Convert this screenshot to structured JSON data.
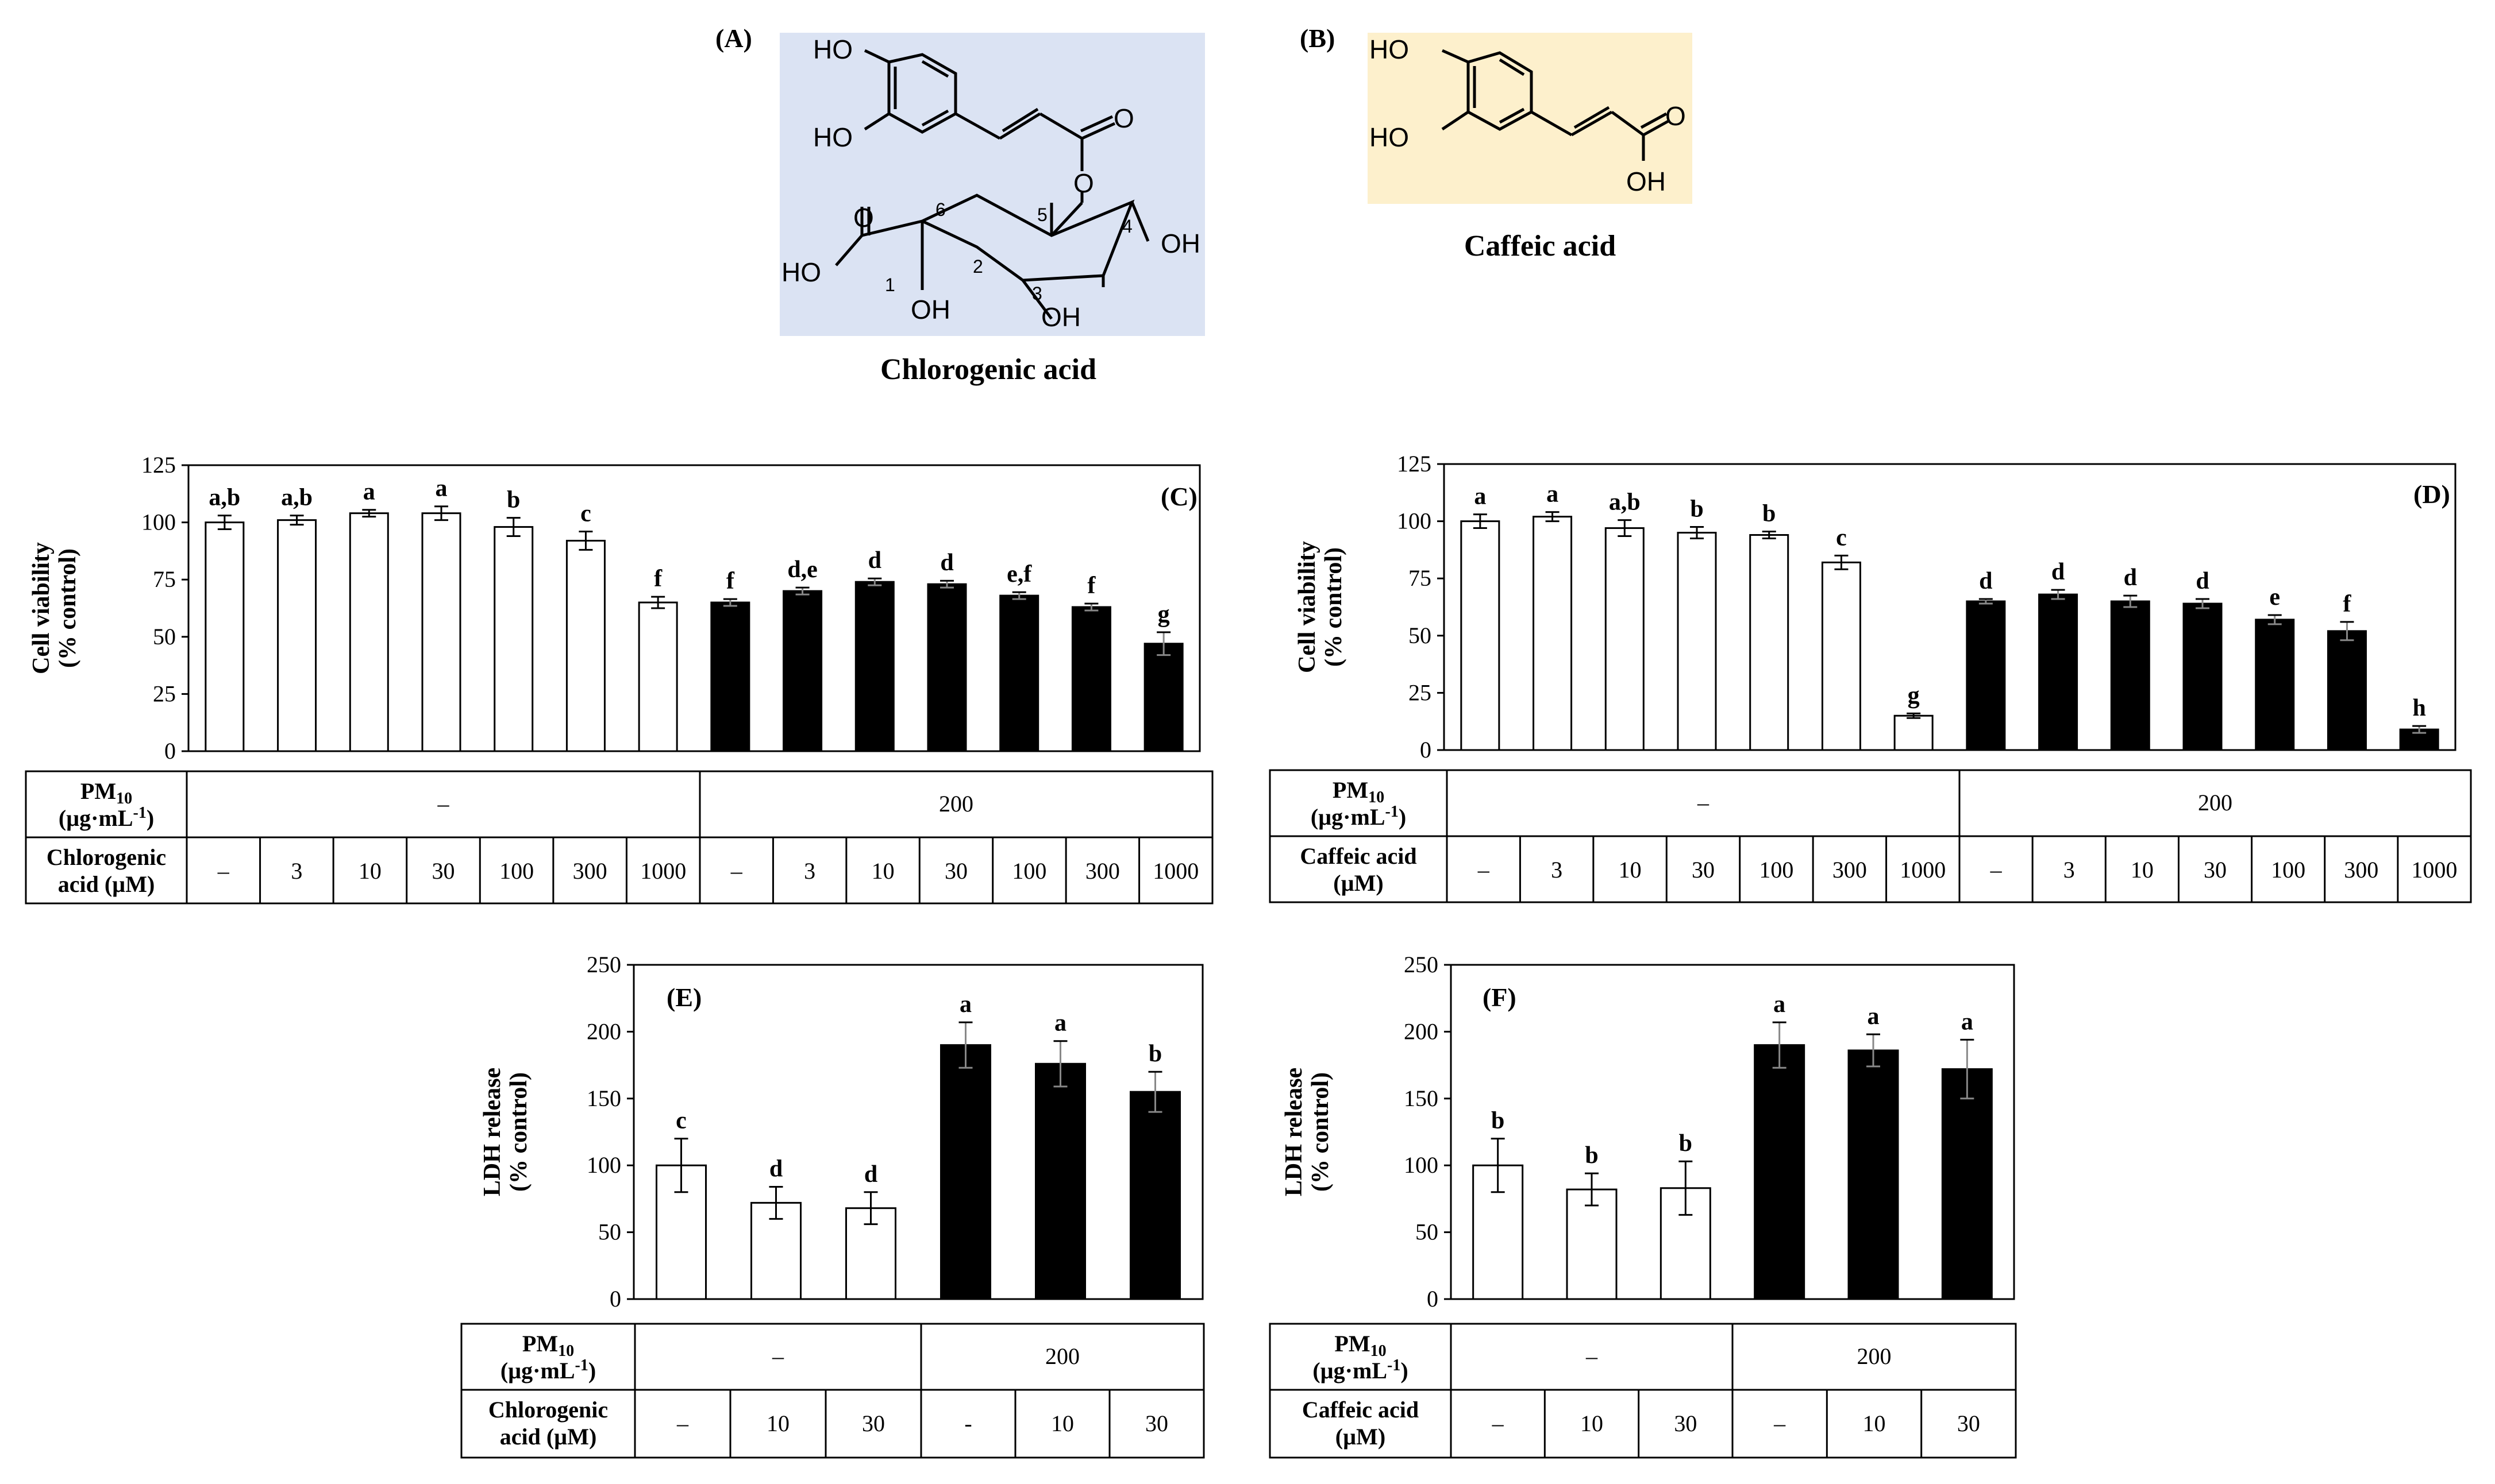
{
  "structures": {
    "A": {
      "panel_label": "(A)",
      "name": "Chlorogenic acid",
      "background": "#dbe3f3",
      "atoms": [
        "HO",
        "HO",
        "O",
        "O",
        "O",
        "HO",
        "OH",
        "OH",
        "OH"
      ],
      "numbers": [
        "1",
        "2",
        "3",
        "4",
        "5",
        "6"
      ]
    },
    "B": {
      "panel_label": "(B)",
      "name": "Caffeic acid",
      "background": "#fdf0cc",
      "atoms": [
        "HO",
        "HO",
        "O",
        "OH"
      ]
    }
  },
  "chart_data": [
    {
      "panel": "(C)",
      "type": "bar",
      "ylabel": [
        "Cell viability",
        "(% control)"
      ],
      "ylim": [
        0,
        125
      ],
      "yticks": [
        0,
        25,
        50,
        75,
        100,
        125
      ],
      "values": [
        100,
        101,
        104,
        104,
        98,
        92,
        65,
        65,
        70,
        74,
        73,
        68,
        63,
        47
      ],
      "errors": [
        3,
        2,
        1.5,
        3,
        4,
        4,
        2.5,
        1.5,
        1.5,
        1.5,
        1.5,
        1.5,
        1.5,
        5
      ],
      "fills": [
        "open",
        "open",
        "open",
        "open",
        "open",
        "open",
        "open",
        "solid",
        "solid",
        "solid",
        "solid",
        "solid",
        "solid",
        "solid"
      ],
      "letters": [
        "a,b",
        "a,b",
        "a",
        "a",
        "b",
        "c",
        "f",
        "f",
        "d,e",
        "d",
        "d",
        "e,f",
        "f",
        "g"
      ],
      "table": {
        "row1_label": [
          "PM10",
          "(µg·mL-1)"
        ],
        "row1_groups": [
          "–",
          "200"
        ],
        "row2_label": [
          "Chlorogenic",
          "acid (µM)"
        ],
        "row2_values": [
          "–",
          "3",
          "10",
          "30",
          "100",
          "300",
          "1000",
          "–",
          "3",
          "10",
          "30",
          "100",
          "300",
          "1000"
        ]
      }
    },
    {
      "panel": "(D)",
      "type": "bar",
      "ylabel": [
        "Cell viability",
        "(% control)"
      ],
      "ylim": [
        0,
        125
      ],
      "yticks": [
        0,
        25,
        50,
        75,
        100,
        125
      ],
      "values": [
        100,
        102,
        97,
        95,
        94,
        82,
        15,
        65,
        68,
        65,
        64,
        57,
        52,
        9
      ],
      "errors": [
        3,
        2,
        3.5,
        2.5,
        1.5,
        3,
        1,
        1,
        2,
        2.5,
        2,
        2,
        4,
        1.5
      ],
      "fills": [
        "open",
        "open",
        "open",
        "open",
        "open",
        "open",
        "open",
        "solid",
        "solid",
        "solid",
        "solid",
        "solid",
        "solid",
        "solid"
      ],
      "letters": [
        "a",
        "a",
        "a,b",
        "b",
        "b",
        "c",
        "g",
        "d",
        "d",
        "d",
        "d",
        "e",
        "f",
        "h"
      ],
      "table": {
        "row1_label": [
          "PM10",
          "(µg·mL-1)"
        ],
        "row1_groups": [
          "–",
          "200"
        ],
        "row2_label": [
          "Caffeic acid",
          "(µM)"
        ],
        "row2_values": [
          "–",
          "3",
          "10",
          "30",
          "100",
          "300",
          "1000",
          "–",
          "3",
          "10",
          "30",
          "100",
          "300",
          "1000"
        ]
      }
    },
    {
      "panel": "(E)",
      "type": "bar",
      "ylabel": [
        "LDH release",
        "(% control)"
      ],
      "ylim": [
        0,
        250
      ],
      "yticks": [
        0,
        50,
        100,
        150,
        200,
        250
      ],
      "values": [
        100,
        72,
        68,
        190,
        176,
        155
      ],
      "errors": [
        20,
        12,
        12,
        17,
        17,
        15
      ],
      "fills": [
        "open",
        "open",
        "open",
        "solid",
        "solid",
        "solid"
      ],
      "letters": [
        "c",
        "d",
        "d",
        "a",
        "a",
        "b"
      ],
      "table": {
        "row1_label": [
          "PM10",
          "(µg·mL-1)"
        ],
        "row1_groups": [
          "–",
          "200"
        ],
        "row2_label": [
          "Chlorogenic",
          "acid (µM)"
        ],
        "row2_values": [
          "–",
          "10",
          "30",
          "-",
          "10",
          "30"
        ]
      }
    },
    {
      "panel": "(F)",
      "type": "bar",
      "ylabel": [
        "LDH release",
        "(% control)"
      ],
      "ylim": [
        0,
        250
      ],
      "yticks": [
        0,
        50,
        100,
        150,
        200,
        250
      ],
      "values": [
        100,
        82,
        83,
        190,
        186,
        172
      ],
      "errors": [
        20,
        12,
        20,
        17,
        12,
        22
      ],
      "fills": [
        "open",
        "open",
        "open",
        "solid",
        "solid",
        "solid"
      ],
      "letters": [
        "b",
        "b",
        "b",
        "a",
        "a",
        "a"
      ],
      "table": {
        "row1_label": [
          "PM10",
          "(µg·mL-1)"
        ],
        "row1_groups": [
          "–",
          "200"
        ],
        "row2_label": [
          "Caffeic acid",
          "(µM)"
        ],
        "row2_values": [
          "–",
          "10",
          "30",
          "–",
          "10",
          "30"
        ]
      }
    }
  ]
}
